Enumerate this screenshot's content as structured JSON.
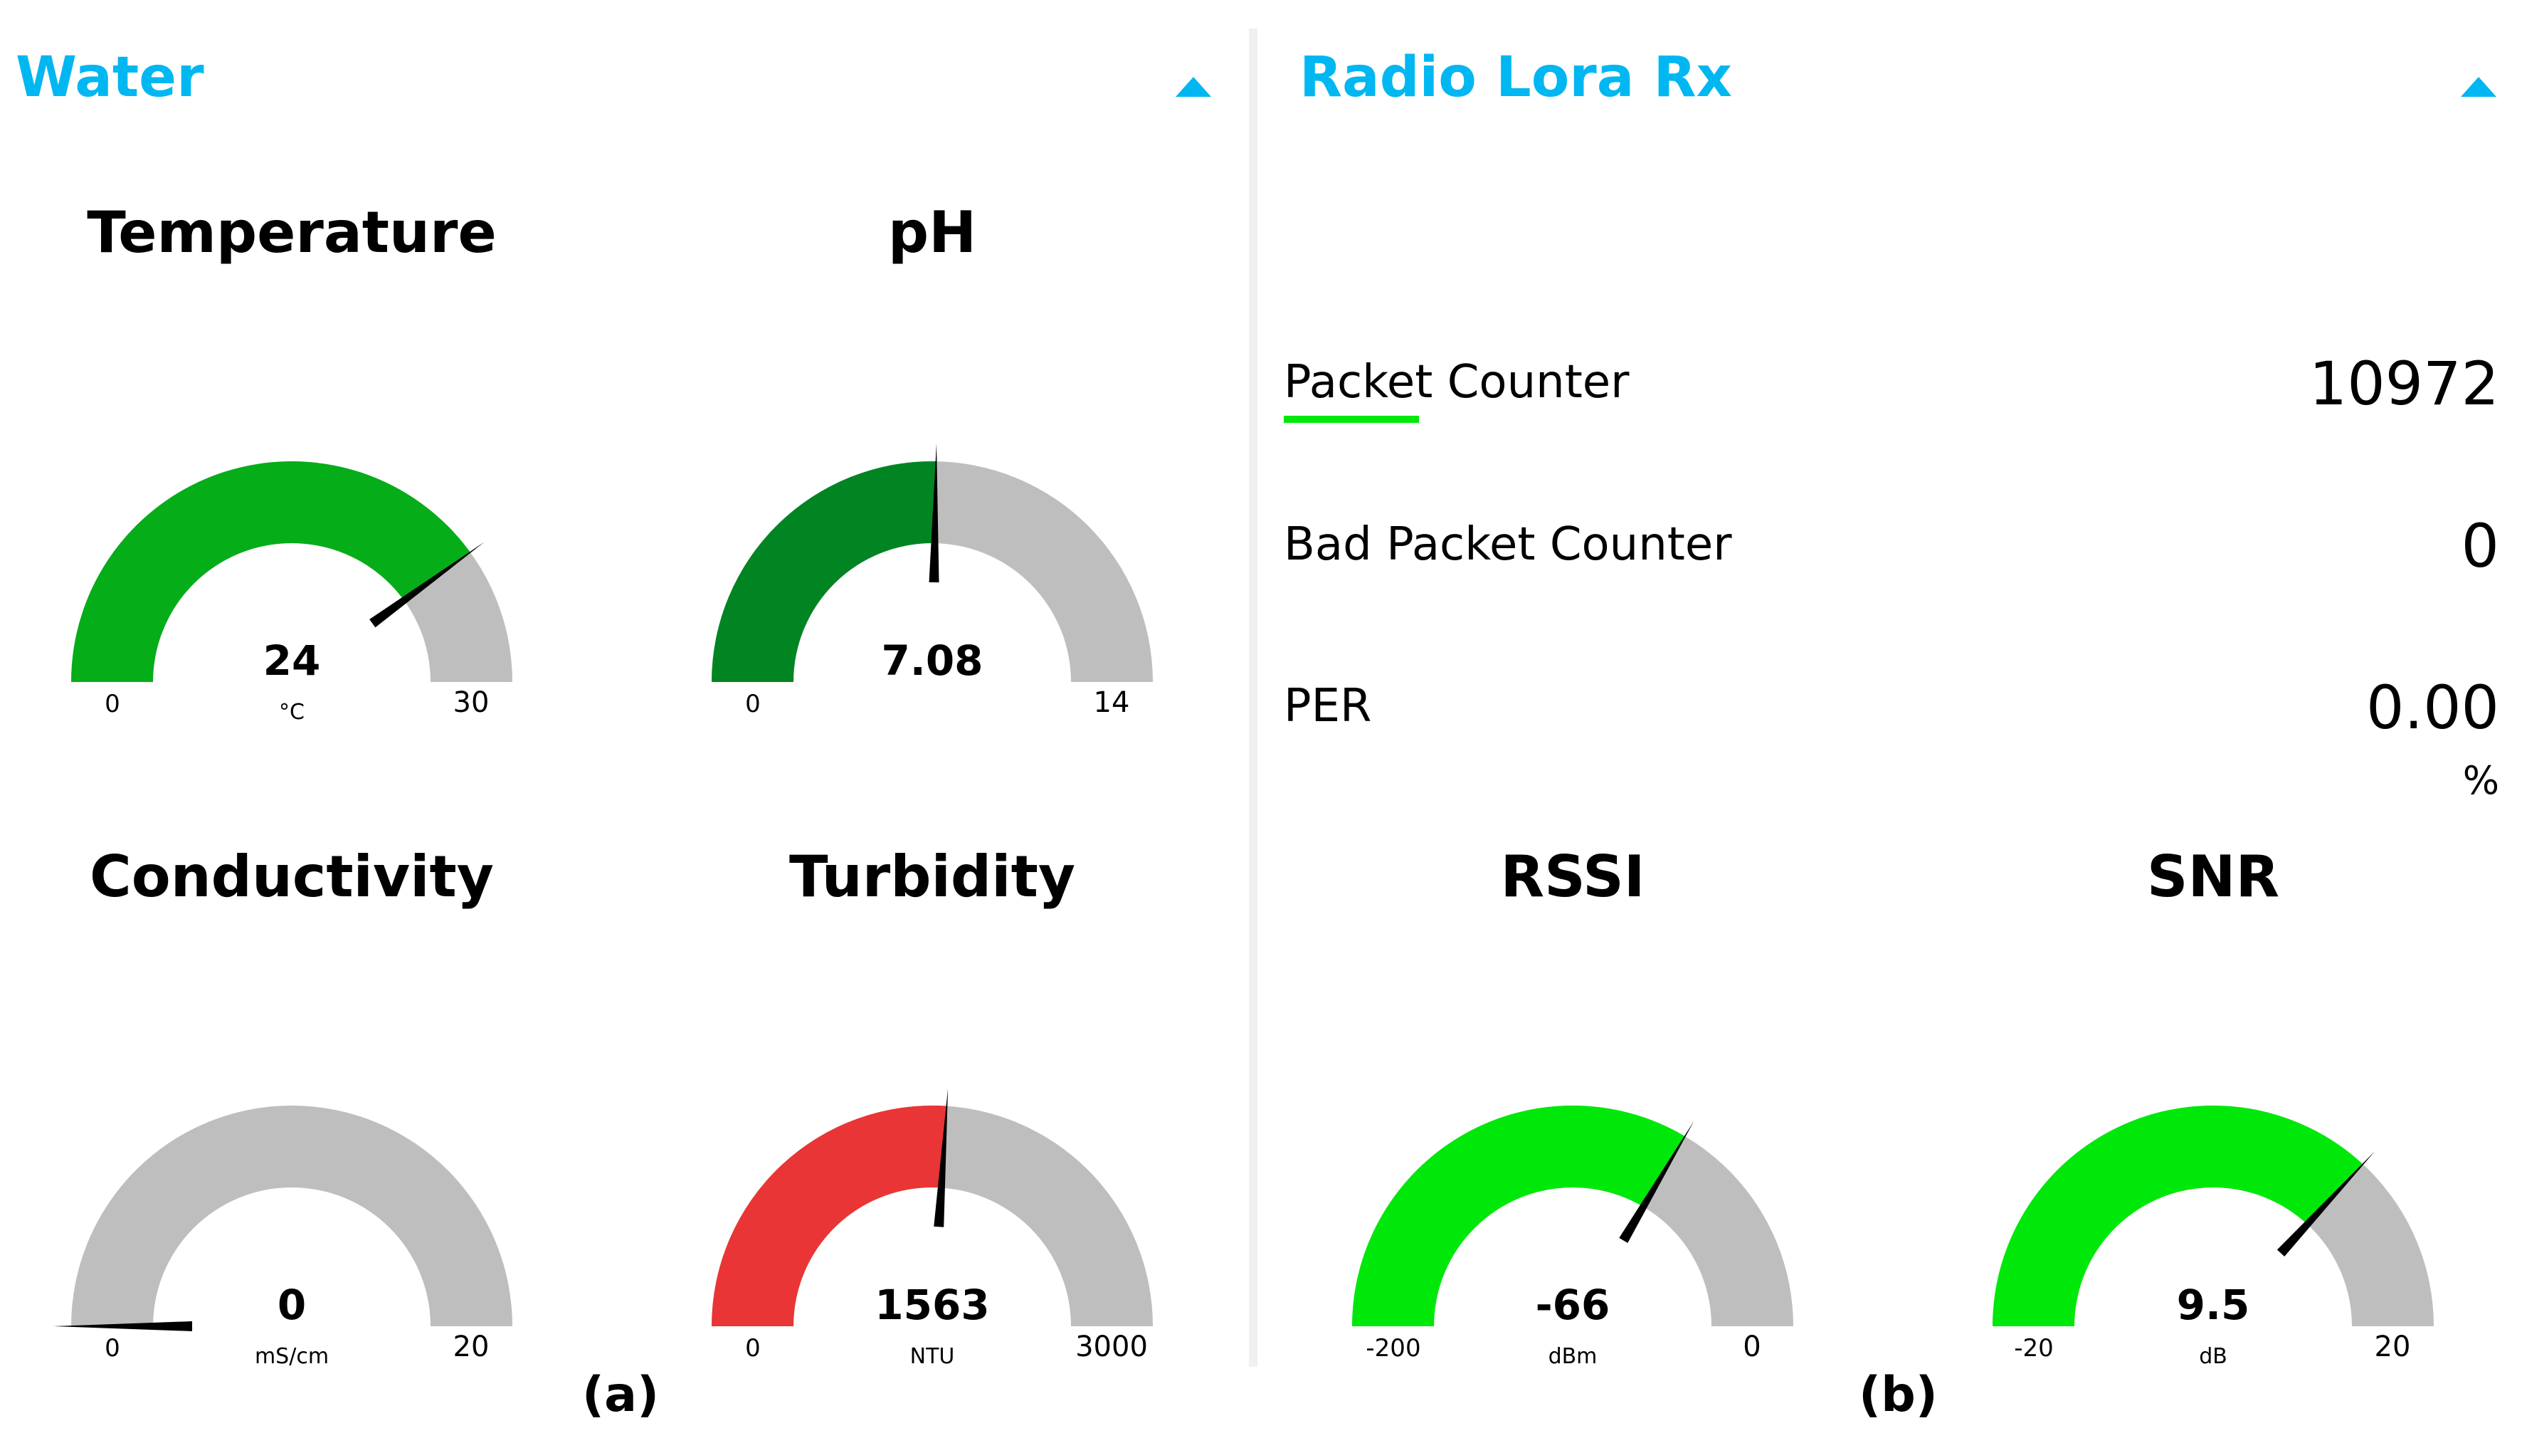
{
  "panels": {
    "water": {
      "title": "Water"
    },
    "radio": {
      "title": "Radio Lora Rx"
    }
  },
  "gauges": {
    "temperature": {
      "title": "Temperature",
      "value": "24",
      "unit": "°C",
      "min": "0",
      "max": "30",
      "fraction": 0.8,
      "color": "#05ad18"
    },
    "ph": {
      "title": "pH",
      "value": "7.08",
      "unit": "",
      "min": "0",
      "max": "14",
      "fraction": 0.5057,
      "color": "#008522"
    },
    "conductivity": {
      "title": "Conductivity",
      "value": "0",
      "unit": "mS/cm",
      "min": "0",
      "max": "20",
      "fraction": 0,
      "color": "#05ad18"
    },
    "turbidity": {
      "title": "Turbidity",
      "value": "1563",
      "unit": "NTU",
      "min": "0",
      "max": "3000",
      "fraction": 0.521,
      "color": "#e93535"
    },
    "rssi": {
      "title": "RSSI",
      "value": "-66",
      "unit": "dBm",
      "min": "-200",
      "max": "0",
      "fraction": 0.67,
      "color": "#00e80a"
    },
    "snr": {
      "title": "SNR",
      "value": "9.5",
      "unit": "dB",
      "min": "-20",
      "max": "20",
      "fraction": 0.7375,
      "color": "#00e80a"
    }
  },
  "stats": {
    "packet_counter": {
      "label": "Packet Counter",
      "value": "10972"
    },
    "bad_packet_counter": {
      "label": "Bad Packet Counter",
      "value": "0"
    },
    "per": {
      "label": "PER",
      "value": "0.00",
      "unit": "%"
    }
  },
  "captions": {
    "a": "(a)",
    "b": "(b)"
  },
  "colors": {
    "accent": "#00b7f1",
    "track": "#bebebe",
    "needle": "#000000",
    "underline": "#00e80a"
  },
  "icons": {
    "collapse": "caret-up-icon"
  }
}
